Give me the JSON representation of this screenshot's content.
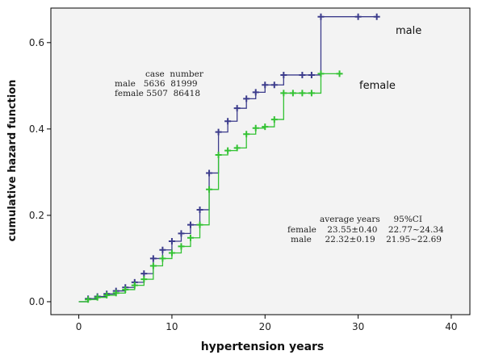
{
  "chart_data": {
    "type": "line",
    "subtype": "step",
    "xlabel": "hypertension years",
    "ylabel": "cumulative hazard function",
    "xlim": [
      -3,
      42
    ],
    "ylim": [
      -0.03,
      0.68
    ],
    "x_ticks": [
      0,
      10,
      20,
      30,
      40
    ],
    "y_ticks": [
      0.0,
      0.2,
      0.4,
      0.6
    ],
    "y_tick_labels": [
      "0.0",
      "0.2",
      "0.4",
      "0.6"
    ],
    "grid": false,
    "plot_background": "#f3f3f3",
    "series": [
      {
        "name": "male",
        "color": "#3c3c8c",
        "points": [
          [
            0,
            0
          ],
          [
            1,
            0.007
          ],
          [
            2,
            0.012
          ],
          [
            3,
            0.018
          ],
          [
            4,
            0.025
          ],
          [
            5,
            0.033
          ],
          [
            6,
            0.045
          ],
          [
            7,
            0.065
          ],
          [
            8,
            0.1
          ],
          [
            9,
            0.12
          ],
          [
            10,
            0.14
          ],
          [
            11,
            0.158
          ],
          [
            12,
            0.178
          ],
          [
            13,
            0.213
          ],
          [
            14,
            0.298
          ],
          [
            15,
            0.393
          ],
          [
            16,
            0.418
          ],
          [
            17,
            0.448
          ],
          [
            18,
            0.47
          ],
          [
            19,
            0.485
          ],
          [
            20,
            0.502
          ],
          [
            21,
            0.502
          ],
          [
            22,
            0.525
          ],
          [
            24,
            0.525
          ],
          [
            25,
            0.525
          ],
          [
            26,
            0.66
          ],
          [
            30,
            0.66
          ],
          [
            32,
            0.66
          ]
        ],
        "censor_x": [
          1,
          2,
          3,
          4,
          5,
          6,
          7,
          8,
          9,
          10,
          11,
          12,
          13,
          14,
          15,
          16,
          17,
          18,
          19,
          20,
          21,
          22,
          24,
          25,
          26,
          30,
          32
        ]
      },
      {
        "name": "female",
        "color": "#33c233",
        "points": [
          [
            0,
            0
          ],
          [
            1,
            0.005
          ],
          [
            2,
            0.01
          ],
          [
            3,
            0.015
          ],
          [
            4,
            0.02
          ],
          [
            5,
            0.028
          ],
          [
            6,
            0.038
          ],
          [
            7,
            0.052
          ],
          [
            8,
            0.083
          ],
          [
            9,
            0.1
          ],
          [
            10,
            0.113
          ],
          [
            11,
            0.128
          ],
          [
            12,
            0.148
          ],
          [
            13,
            0.178
          ],
          [
            14,
            0.26
          ],
          [
            15,
            0.34
          ],
          [
            16,
            0.35
          ],
          [
            17,
            0.356
          ],
          [
            18,
            0.388
          ],
          [
            19,
            0.402
          ],
          [
            20,
            0.405
          ],
          [
            21,
            0.422
          ],
          [
            22,
            0.483
          ],
          [
            23,
            0.483
          ],
          [
            24,
            0.483
          ],
          [
            25,
            0.483
          ],
          [
            26,
            0.528
          ],
          [
            28,
            0.528
          ]
        ],
        "censor_x": [
          1,
          2,
          3,
          4,
          5,
          6,
          7,
          8,
          9,
          10,
          11,
          12,
          13,
          14,
          15,
          16,
          17,
          18,
          19,
          20,
          21,
          22,
          23,
          24,
          25,
          26,
          28
        ]
      }
    ],
    "legend": {
      "placement": "inline",
      "male_label": "male",
      "female_label": "female"
    },
    "case_table": {
      "header": "case  number",
      "rows": [
        "male   5636  81999",
        "female 5507  86418"
      ]
    },
    "stats_table": {
      "header": "average years     95%CI",
      "rows": [
        "female    23.55±0.40    22.77~24.34",
        "male     22.32±0.19    21.95~22.69"
      ]
    }
  }
}
